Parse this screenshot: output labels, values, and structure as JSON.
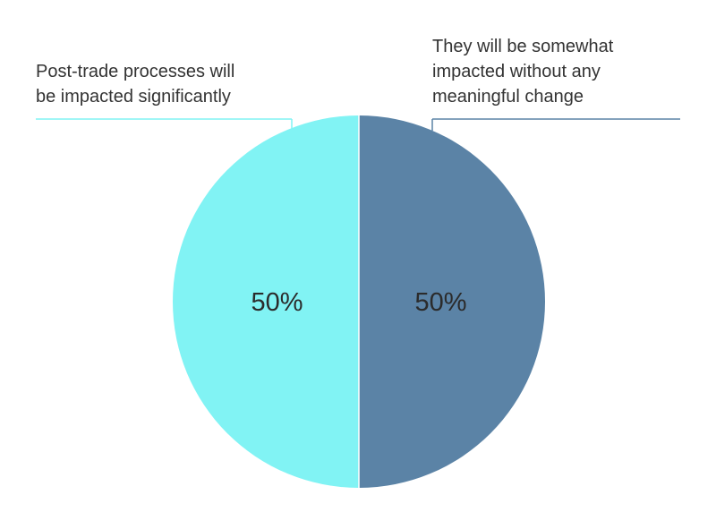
{
  "chart_data": {
    "type": "pie",
    "title": "",
    "slices": [
      {
        "label": "They will be somewhat impacted without any meaningful change",
        "label_lines": [
          "They will be somewhat",
          "impacted without any",
          "meaningful change"
        ],
        "value": 50,
        "value_label": "50%",
        "color": "#5b83a6"
      },
      {
        "label": "Post-trade processes will be impacted significantly",
        "label_lines": [
          "Post-trade processes will",
          "be impacted significantly"
        ],
        "value": 50,
        "value_label": "50%",
        "color": "#81f3f4"
      }
    ],
    "start_angle": "top",
    "direction": "clockwise",
    "legend": "none"
  }
}
